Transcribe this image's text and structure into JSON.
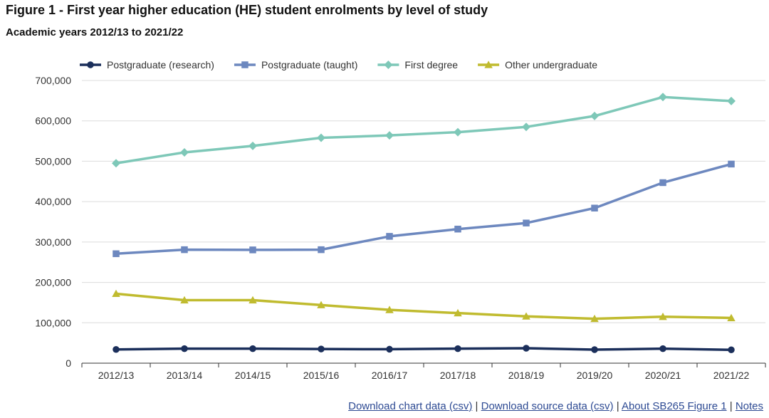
{
  "chart_data": {
    "type": "line",
    "title": "Figure 1 - First year higher education (HE) student enrolments by level of study",
    "subtitle": "Academic years 2012/13 to 2021/22",
    "xlabel": "",
    "ylabel": "",
    "ylim": [
      0,
      700000
    ],
    "yticks": [
      0,
      100000,
      200000,
      300000,
      400000,
      500000,
      600000,
      700000
    ],
    "ytick_labels": [
      "0",
      "100,000",
      "200,000",
      "300,000",
      "400,000",
      "500,000",
      "600,000",
      "700,000"
    ],
    "grid": true,
    "legend_position": "top-left",
    "categories": [
      "2012/13",
      "2013/14",
      "2014/15",
      "2015/16",
      "2016/17",
      "2017/18",
      "2018/19",
      "2019/20",
      "2020/21",
      "2021/22"
    ],
    "series": [
      {
        "name": "Postgraduate (research)",
        "color": "#1b2f5b",
        "marker": "circle",
        "values": [
          34000,
          36000,
          36000,
          35000,
          34500,
          36000,
          37000,
          33500,
          36000,
          33000
        ]
      },
      {
        "name": "Postgraduate (taught)",
        "color": "#6d88bf",
        "marker": "square",
        "values": [
          271000,
          281000,
          280500,
          281000,
          314000,
          332000,
          347000,
          384000,
          447000,
          493000
        ]
      },
      {
        "name": "First degree",
        "color": "#7ec8b8",
        "marker": "diamond",
        "values": [
          495000,
          522000,
          538000,
          558000,
          564000,
          572000,
          585000,
          612000,
          659000,
          649000
        ]
      },
      {
        "name": "Other undergraduate",
        "color": "#c0bb2f",
        "marker": "triangle",
        "values": [
          172000,
          156000,
          156000,
          144000,
          132000,
          124000,
          116000,
          110000,
          115000,
          112000
        ]
      }
    ]
  },
  "links": {
    "download_chart": "Download chart data (csv)",
    "download_source": "Download source data (csv)",
    "about": "About SB265 Figure 1",
    "notes": "Notes",
    "separator": "|"
  }
}
